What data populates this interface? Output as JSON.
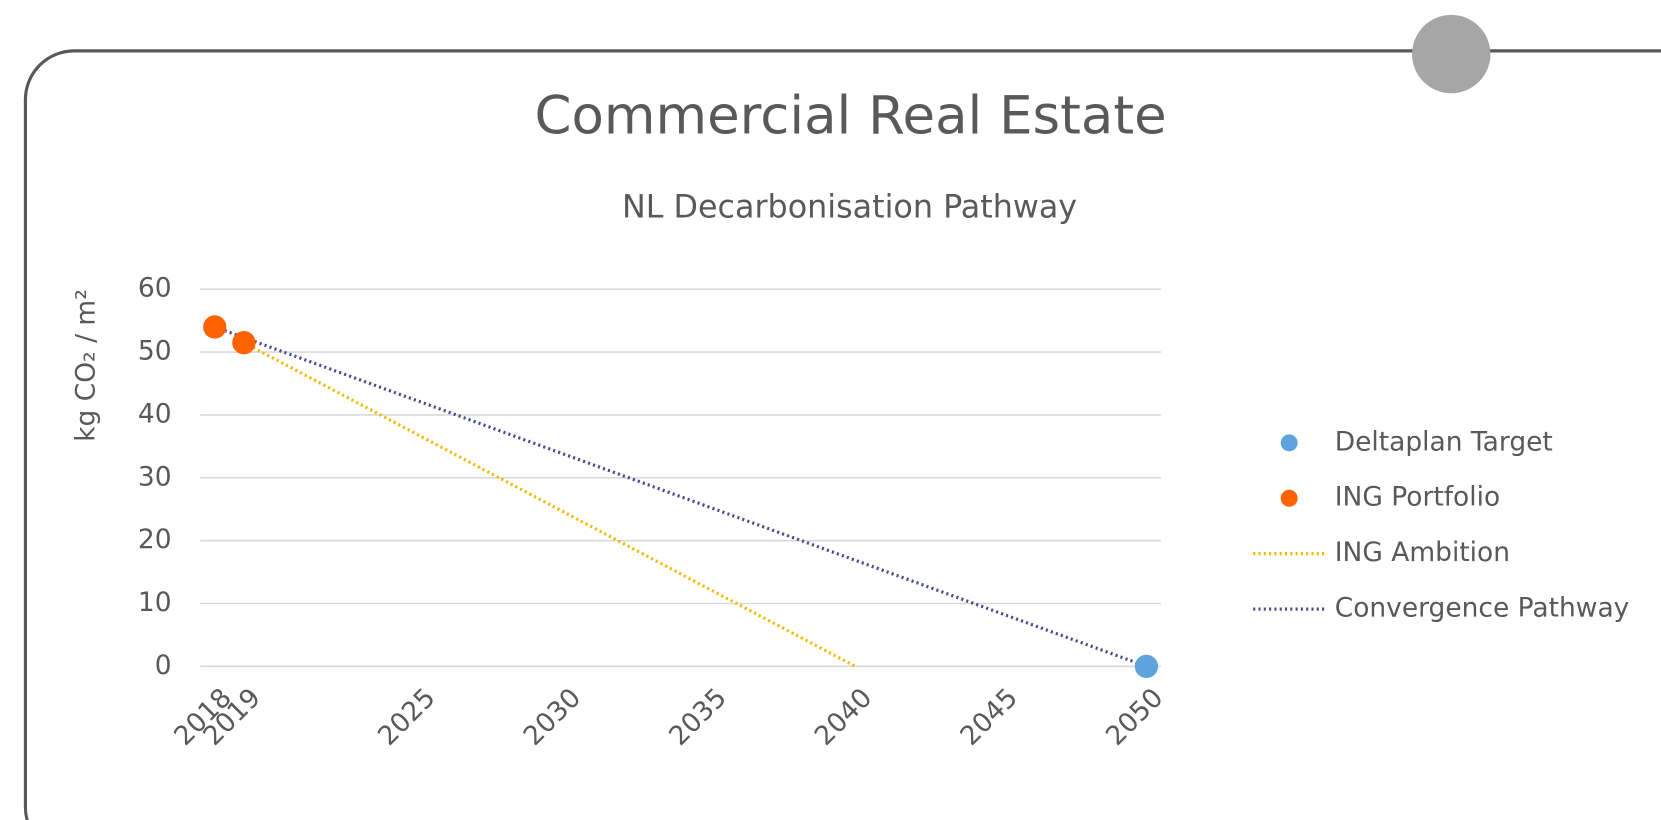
{
  "chart_data": {
    "type": "scatter",
    "title": "Commercial Real Estate",
    "subtitle": "NL Decarbonisation Pathway",
    "y_label": "kg CO₂ / m²",
    "xlim": [
      2017.5,
      2050.5
    ],
    "xticks": [
      2018,
      2019,
      2025,
      2030,
      2035,
      2040,
      2045,
      2050
    ],
    "ylim": [
      0,
      60
    ],
    "yticks": [
      0,
      10,
      20,
      30,
      40,
      50,
      60
    ],
    "grid": true,
    "legend": "right",
    "series": [
      {
        "name": "Deltaplan Target",
        "color": "#5fa3dc",
        "style": "markers",
        "x": [
          2050
        ],
        "values": [
          0
        ]
      },
      {
        "name": "ING Portfolio",
        "color": "#ff6200",
        "style": "markers",
        "x": [
          2018,
          2019
        ],
        "values": [
          54,
          51.5
        ]
      },
      {
        "name": "ING Ambition",
        "color": "#f5b800",
        "style": "dotted-line",
        "x": [
          2019,
          2040
        ],
        "values": [
          51.5,
          0
        ]
      },
      {
        "name": "Convergence Pathway",
        "color": "#4b4a8f",
        "style": "dotted-line",
        "x": [
          2018,
          2050
        ],
        "values": [
          54,
          0
        ]
      }
    ]
  }
}
